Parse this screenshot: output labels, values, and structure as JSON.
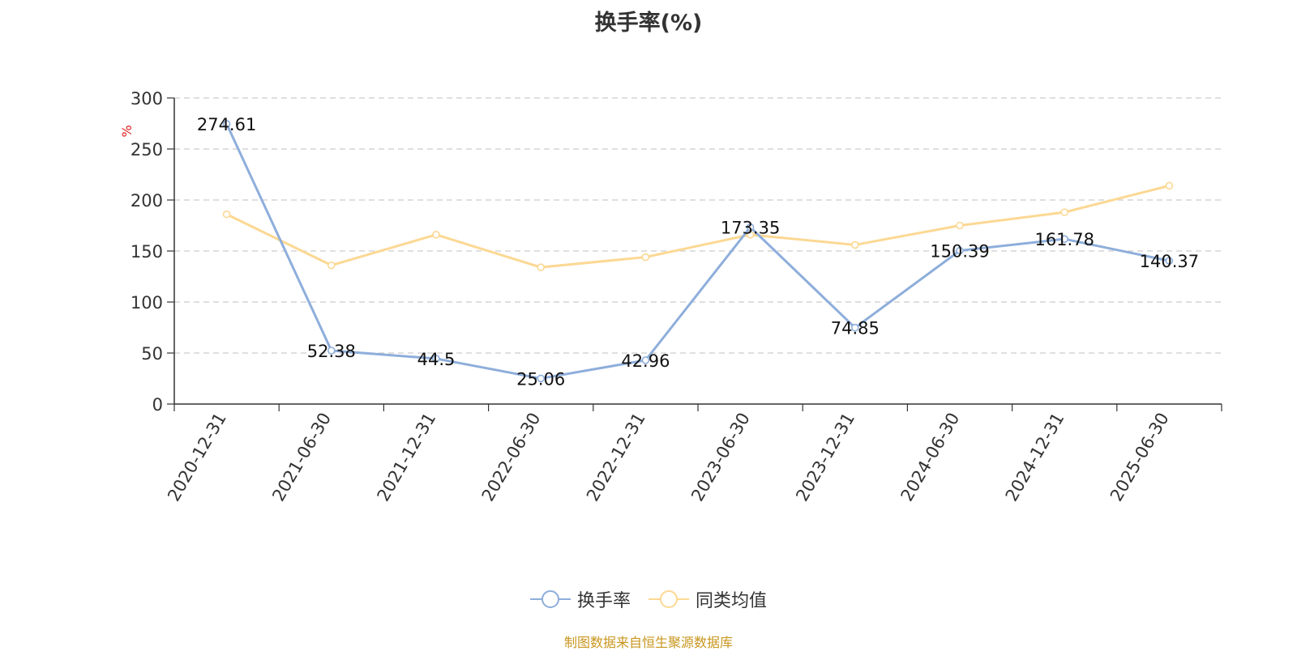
{
  "chart_data": {
    "type": "line",
    "title": "换手率(%)",
    "ylabel": "%",
    "xlabel": "",
    "categories": [
      "2020-12-31",
      "2021-06-30",
      "2021-12-31",
      "2022-06-30",
      "2022-12-31",
      "2023-06-30",
      "2023-12-31",
      "2024-06-30",
      "2024-12-31",
      "2025-06-30"
    ],
    "ylim": [
      0,
      300
    ],
    "yticks": [
      0,
      50,
      100,
      150,
      200,
      250,
      300
    ],
    "grid": true,
    "legend_position": "bottom",
    "series": [
      {
        "name": "换手率",
        "color": "#8eaedb",
        "show_labels": true,
        "values": [
          274.61,
          52.38,
          44.5,
          25.06,
          42.96,
          173.35,
          74.85,
          150.39,
          161.78,
          140.37
        ],
        "labels": [
          "274.61",
          "52.38",
          "44.5",
          "25.06",
          "42.96",
          "173.35",
          "74.85",
          "150.39",
          "161.78",
          "140.37"
        ]
      },
      {
        "name": "同类均值",
        "color": "#fcd893",
        "show_labels": false,
        "values": [
          186,
          136,
          166,
          134,
          144,
          166,
          156,
          175,
          188,
          214
        ]
      }
    ]
  },
  "source": "制图数据来自恒生聚源数据库"
}
